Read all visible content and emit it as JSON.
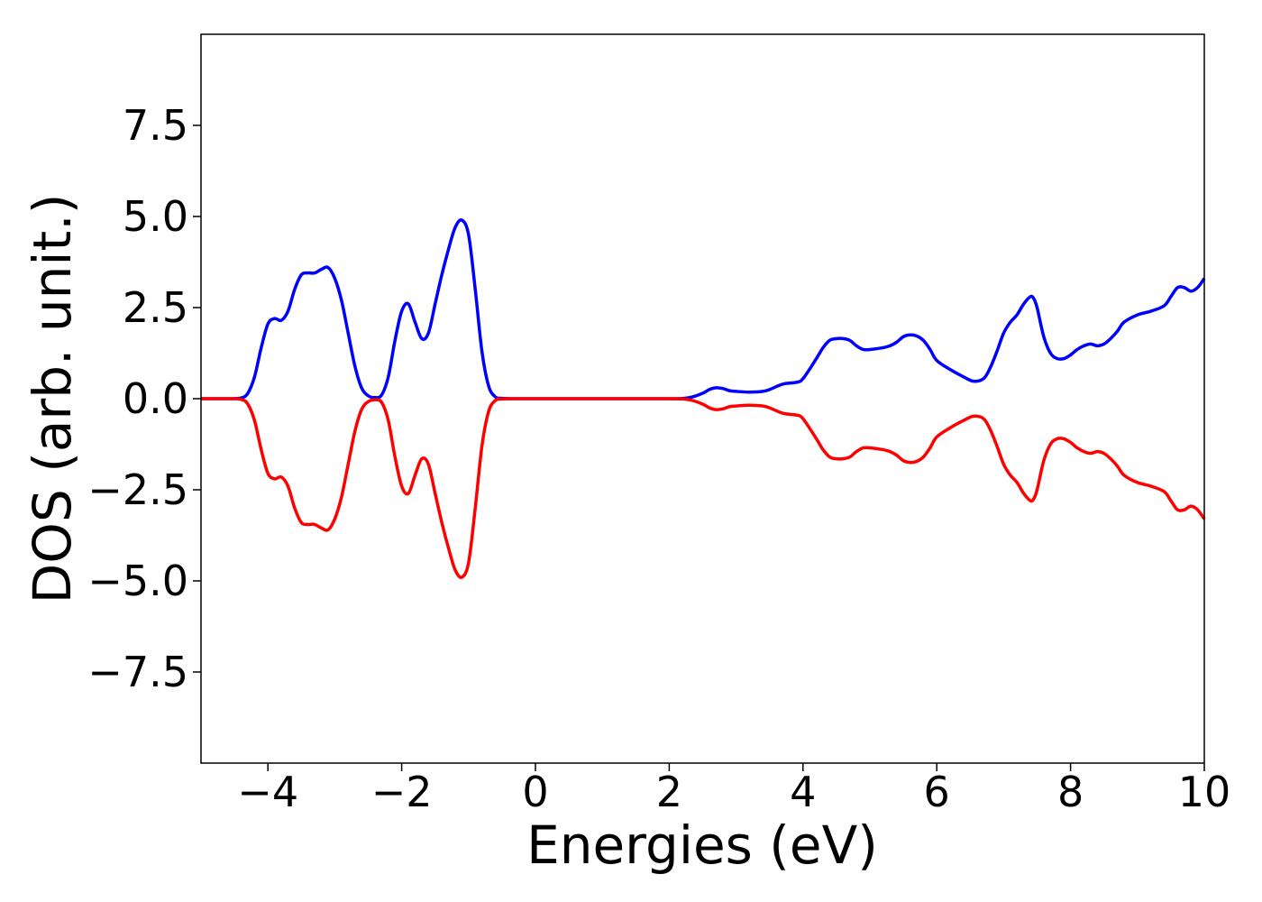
{
  "chart_data": {
    "type": "line",
    "title": "",
    "xlabel": "Energies (eV)",
    "ylabel": "DOS (arb. unit.)",
    "xlim": [
      -5,
      10
    ],
    "ylim": [
      -10,
      10
    ],
    "x_ticks": [
      {
        "value": -4,
        "label": "−4"
      },
      {
        "value": -2,
        "label": "−2"
      },
      {
        "value": 0,
        "label": "0"
      },
      {
        "value": 2,
        "label": "2"
      },
      {
        "value": 4,
        "label": "4"
      },
      {
        "value": 6,
        "label": "6"
      },
      {
        "value": 8,
        "label": "8"
      },
      {
        "value": 10,
        "label": "10"
      }
    ],
    "y_ticks": [
      {
        "value": 7.5,
        "label": "7.5"
      },
      {
        "value": 5.0,
        "label": "5.0"
      },
      {
        "value": 2.5,
        "label": "2.5"
      },
      {
        "value": 0.0,
        "label": "0.0"
      },
      {
        "value": -2.5,
        "label": "−2.5"
      },
      {
        "value": -5.0,
        "label": "−5.0"
      },
      {
        "value": -7.5,
        "label": "−7.5"
      }
    ],
    "grid": false,
    "legend": "none",
    "series": [
      {
        "color": "#0000ff",
        "x": [
          -5.0,
          -4.6,
          -4.4,
          -4.3,
          -4.2,
          -4.1,
          -4.0,
          -3.9,
          -3.8,
          -3.7,
          -3.6,
          -3.5,
          -3.4,
          -3.3,
          -3.2,
          -3.1,
          -3.0,
          -2.9,
          -2.8,
          -2.7,
          -2.6,
          -2.5,
          -2.4,
          -2.3,
          -2.2,
          -2.1,
          -2.0,
          -1.9,
          -1.8,
          -1.7,
          -1.6,
          -1.5,
          -1.4,
          -1.3,
          -1.2,
          -1.1,
          -1.0,
          -0.9,
          -0.8,
          -0.7,
          -0.6,
          -0.5,
          -0.3,
          0.0,
          1.0,
          2.0,
          2.3,
          2.5,
          2.6,
          2.7,
          2.8,
          2.9,
          3.0,
          3.2,
          3.4,
          3.5,
          3.7,
          3.9,
          4.0,
          4.2,
          4.3,
          4.4,
          4.5,
          4.6,
          4.7,
          4.8,
          4.9,
          5.0,
          5.2,
          5.3,
          5.4,
          5.5,
          5.6,
          5.7,
          5.8,
          5.9,
          6.0,
          6.2,
          6.4,
          6.55,
          6.7,
          6.8,
          6.9,
          7.0,
          7.1,
          7.2,
          7.3,
          7.4,
          7.45,
          7.5,
          7.6,
          7.7,
          7.8,
          7.9,
          8.0,
          8.1,
          8.2,
          8.3,
          8.4,
          8.5,
          8.6,
          8.7,
          8.8,
          9.0,
          9.2,
          9.4,
          9.5,
          9.6,
          9.7,
          9.8,
          9.9,
          10.0
        ],
        "y": [
          0.0,
          0.0,
          0.02,
          0.15,
          0.6,
          1.4,
          2.05,
          2.2,
          2.15,
          2.4,
          3.0,
          3.4,
          3.45,
          3.45,
          3.55,
          3.6,
          3.3,
          2.7,
          1.8,
          0.9,
          0.3,
          0.08,
          0.03,
          0.1,
          0.6,
          1.6,
          2.4,
          2.6,
          2.1,
          1.65,
          1.8,
          2.6,
          3.4,
          4.1,
          4.7,
          4.9,
          4.5,
          3.0,
          1.3,
          0.35,
          0.05,
          0.01,
          0.0,
          0.0,
          0.0,
          0.0,
          0.03,
          0.15,
          0.25,
          0.3,
          0.28,
          0.22,
          0.2,
          0.18,
          0.2,
          0.25,
          0.4,
          0.45,
          0.55,
          1.1,
          1.4,
          1.6,
          1.65,
          1.65,
          1.6,
          1.45,
          1.35,
          1.35,
          1.4,
          1.45,
          1.55,
          1.7,
          1.75,
          1.72,
          1.6,
          1.35,
          1.05,
          0.8,
          0.6,
          0.48,
          0.55,
          0.85,
          1.3,
          1.8,
          2.1,
          2.3,
          2.6,
          2.8,
          2.75,
          2.5,
          1.7,
          1.25,
          1.1,
          1.1,
          1.2,
          1.35,
          1.45,
          1.5,
          1.45,
          1.5,
          1.65,
          1.85,
          2.1,
          2.3,
          2.4,
          2.55,
          2.8,
          3.05,
          3.05,
          2.95,
          3.05,
          3.3
        ]
      },
      {
        "color": "#ff0000",
        "x": [
          -5.0,
          -4.6,
          -4.4,
          -4.3,
          -4.2,
          -4.1,
          -4.0,
          -3.9,
          -3.8,
          -3.7,
          -3.6,
          -3.5,
          -3.4,
          -3.3,
          -3.2,
          -3.1,
          -3.0,
          -2.9,
          -2.8,
          -2.7,
          -2.6,
          -2.5,
          -2.4,
          -2.3,
          -2.2,
          -2.1,
          -2.0,
          -1.9,
          -1.8,
          -1.7,
          -1.6,
          -1.5,
          -1.4,
          -1.3,
          -1.2,
          -1.1,
          -1.0,
          -0.9,
          -0.8,
          -0.7,
          -0.6,
          -0.5,
          -0.3,
          0.0,
          1.0,
          2.0,
          2.3,
          2.5,
          2.6,
          2.7,
          2.8,
          2.9,
          3.0,
          3.2,
          3.4,
          3.5,
          3.7,
          3.9,
          4.0,
          4.2,
          4.3,
          4.4,
          4.5,
          4.6,
          4.7,
          4.8,
          4.9,
          5.0,
          5.2,
          5.3,
          5.4,
          5.5,
          5.6,
          5.7,
          5.8,
          5.9,
          6.0,
          6.2,
          6.4,
          6.55,
          6.7,
          6.8,
          6.9,
          7.0,
          7.1,
          7.2,
          7.3,
          7.4,
          7.45,
          7.5,
          7.6,
          7.7,
          7.8,
          7.9,
          8.0,
          8.1,
          8.2,
          8.3,
          8.4,
          8.5,
          8.6,
          8.7,
          8.8,
          9.0,
          9.2,
          9.4,
          9.5,
          9.6,
          9.7,
          9.8,
          9.9,
          10.0
        ],
        "y": [
          0.0,
          0.0,
          -0.02,
          -0.15,
          -0.6,
          -1.4,
          -2.05,
          -2.2,
          -2.15,
          -2.4,
          -3.0,
          -3.4,
          -3.45,
          -3.45,
          -3.55,
          -3.6,
          -3.3,
          -2.7,
          -1.8,
          -0.9,
          -0.3,
          -0.08,
          -0.03,
          -0.1,
          -0.6,
          -1.6,
          -2.4,
          -2.6,
          -2.1,
          -1.65,
          -1.8,
          -2.6,
          -3.4,
          -4.1,
          -4.7,
          -4.9,
          -4.5,
          -3.0,
          -1.3,
          -0.35,
          -0.05,
          -0.01,
          0.0,
          0.0,
          0.0,
          0.0,
          -0.03,
          -0.15,
          -0.25,
          -0.3,
          -0.28,
          -0.22,
          -0.2,
          -0.18,
          -0.2,
          -0.25,
          -0.4,
          -0.45,
          -0.55,
          -1.1,
          -1.4,
          -1.6,
          -1.65,
          -1.65,
          -1.6,
          -1.45,
          -1.35,
          -1.35,
          -1.4,
          -1.45,
          -1.55,
          -1.7,
          -1.75,
          -1.72,
          -1.6,
          -1.35,
          -1.05,
          -0.8,
          -0.6,
          -0.48,
          -0.55,
          -0.85,
          -1.3,
          -1.8,
          -2.1,
          -2.3,
          -2.6,
          -2.8,
          -2.75,
          -2.5,
          -1.7,
          -1.25,
          -1.1,
          -1.1,
          -1.2,
          -1.35,
          -1.45,
          -1.5,
          -1.45,
          -1.5,
          -1.65,
          -1.85,
          -2.1,
          -2.3,
          -2.4,
          -2.55,
          -2.8,
          -3.05,
          -3.05,
          -2.95,
          -3.05,
          -3.3
        ]
      }
    ]
  }
}
